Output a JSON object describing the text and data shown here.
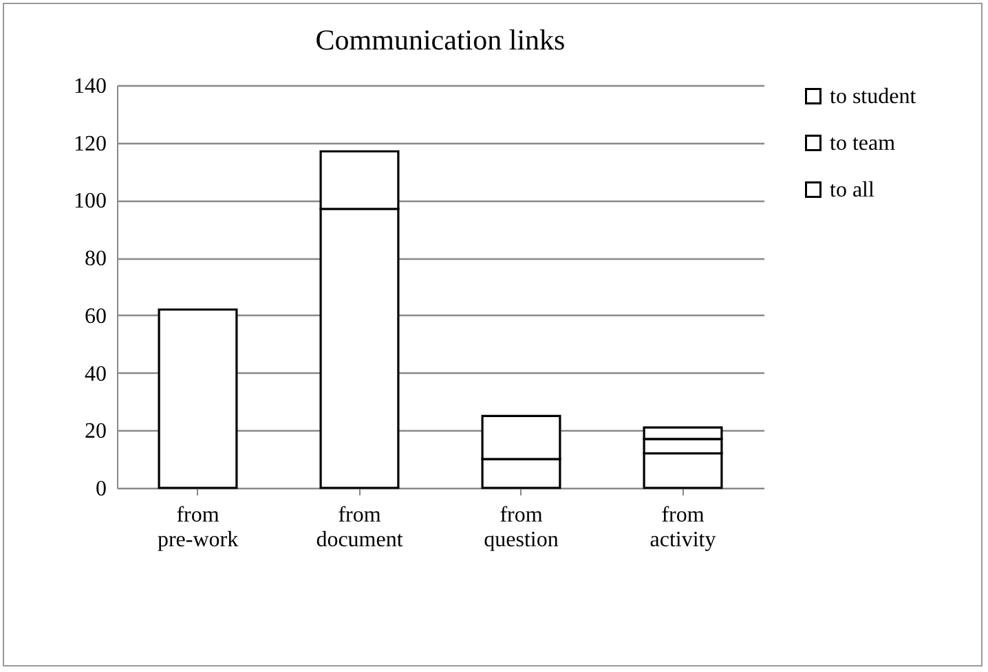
{
  "chart_data": {
    "type": "bar",
    "title": "Communication links",
    "stacked": true,
    "categories": [
      "from pre-work",
      "from document",
      "from question",
      "from activity"
    ],
    "series": [
      {
        "name": "to student",
        "color": "#ffffff",
        "values": [
          62,
          97,
          10,
          12
        ]
      },
      {
        "name": "to team",
        "color": "#ffffff",
        "values": [
          0,
          20,
          15,
          5
        ]
      },
      {
        "name": "to all",
        "color": "#ffffff",
        "values": [
          0,
          0,
          0,
          4
        ]
      }
    ],
    "ylim": [
      0,
      140
    ],
    "yticks": [
      0,
      20,
      40,
      60,
      80,
      100,
      120,
      140
    ],
    "grid": "y",
    "legend": "right"
  }
}
